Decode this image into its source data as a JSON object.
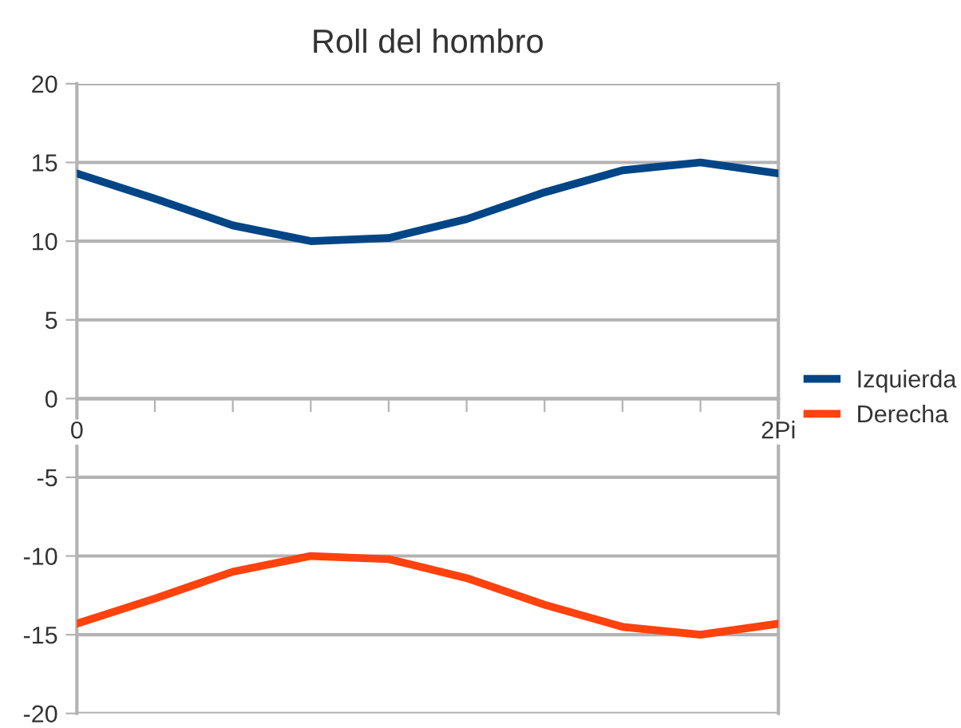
{
  "chart_data": {
    "type": "line",
    "title": "Roll del hombro",
    "categories": [
      "0",
      null,
      null,
      null,
      null,
      null,
      null,
      null,
      null,
      "2Pi"
    ],
    "series": [
      {
        "name": "Izquierda",
        "color": "#004586",
        "values": [
          14.3,
          12.7,
          11.0,
          10.0,
          10.2,
          11.4,
          13.1,
          14.5,
          15.0,
          14.3
        ]
      },
      {
        "name": "Derecha",
        "color": "#ff420e",
        "values": [
          -14.3,
          -12.7,
          -11.0,
          -10.0,
          -10.2,
          -11.4,
          -13.1,
          -14.5,
          -15.0,
          -14.3
        ]
      }
    ],
    "ylim": [
      -20,
      20
    ],
    "yticks": [
      -20,
      -15,
      -10,
      -5,
      0,
      5,
      10,
      15,
      20
    ],
    "grid": "y",
    "legend": "right",
    "marker": "none",
    "line_style": "solid"
  }
}
